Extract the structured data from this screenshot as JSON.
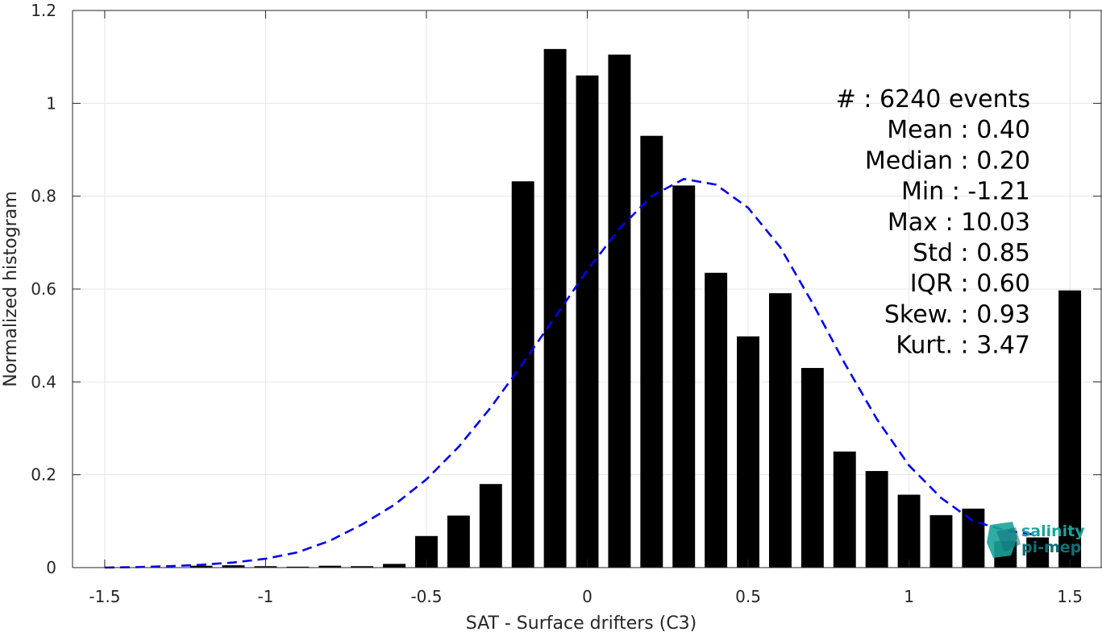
{
  "chart_data": {
    "type": "bar",
    "xlabel": "SAT - Surface drifters (C3)",
    "ylabel": "Normalized histogram",
    "xlim": [
      -1.6,
      1.6
    ],
    "ylim": [
      0,
      1.2
    ],
    "xticks": [
      -1.5,
      -1,
      -0.5,
      0,
      0.5,
      1,
      1.5
    ],
    "xtick_labels": [
      "-1.5",
      "-1",
      "-0.5",
      "0",
      "0.5",
      "1",
      "1.5"
    ],
    "yticks": [
      0,
      0.2,
      0.4,
      0.6,
      0.8,
      1,
      1.2
    ],
    "ytick_labels": [
      "0",
      "0.2",
      "0.4",
      "0.6",
      "0.8",
      "1",
      "1.2"
    ],
    "grid": true,
    "bar_width": 0.07,
    "bars": {
      "x": [
        -1.2,
        -1.1,
        -1.0,
        -0.9,
        -0.8,
        -0.7,
        -0.6,
        -0.5,
        -0.4,
        -0.3,
        -0.2,
        -0.1,
        0.0,
        0.1,
        0.2,
        0.3,
        0.4,
        0.5,
        0.6,
        0.7,
        0.8,
        0.9,
        1.0,
        1.1,
        1.2,
        1.3,
        1.4,
        1.5
      ],
      "values": [
        0.004,
        0.005,
        0.003,
        0.002,
        0.004,
        0.003,
        0.008,
        0.068,
        0.112,
        0.18,
        0.832,
        1.117,
        1.06,
        1.105,
        0.93,
        0.823,
        0.635,
        0.498,
        0.591,
        0.43,
        0.25,
        0.208,
        0.157,
        0.113,
        0.127,
        0.057,
        0.065,
        0.597
      ],
      "color": "#000000"
    },
    "fit": {
      "type": "normal",
      "x": [
        -1.5,
        -1.4,
        -1.3,
        -1.2,
        -1.1,
        -1.0,
        -0.9,
        -0.8,
        -0.7,
        -0.6,
        -0.5,
        -0.4,
        -0.3,
        -0.2,
        -0.1,
        0.0,
        0.1,
        0.2,
        0.3,
        0.4,
        0.5,
        0.6,
        0.7,
        0.8,
        0.9,
        1.0,
        1.1,
        1.2,
        1.3,
        1.4
      ],
      "values": [
        0.0,
        0.001,
        0.003,
        0.006,
        0.011,
        0.019,
        0.033,
        0.058,
        0.093,
        0.135,
        0.19,
        0.26,
        0.345,
        0.44,
        0.54,
        0.64,
        0.73,
        0.8,
        0.837,
        0.825,
        0.775,
        0.69,
        0.57,
        0.44,
        0.32,
        0.22,
        0.15,
        0.1,
        0.08,
        0.07
      ],
      "color": "#0000ee",
      "style": "dashed"
    },
    "stats": [
      {
        "label": "#  : 6240 events"
      },
      {
        "label": "Mean : 0.40"
      },
      {
        "label": "Median : 0.20"
      },
      {
        "label": "Min : -1.21"
      },
      {
        "label": "Max : 10.03"
      },
      {
        "label": "Std : 0.85"
      },
      {
        "label": "IQR : 0.60"
      },
      {
        "label": "Skew. : 0.93"
      },
      {
        "label": "Kurt. : 3.47"
      }
    ]
  },
  "logo": {
    "line1": "salinity",
    "line2": "pi-mep",
    "color_primary": "#1aa39a",
    "color_secondary": "#0e6f78"
  },
  "colors": {
    "axis": "#262626",
    "grid": "#e6e6e6"
  }
}
